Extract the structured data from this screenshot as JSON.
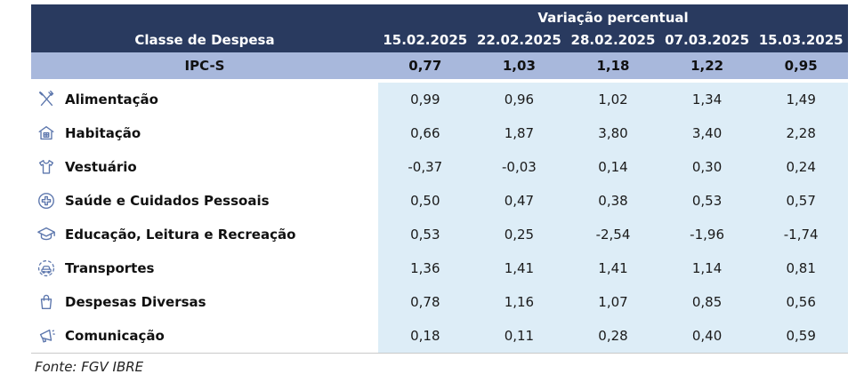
{
  "table": {
    "group_header": "Variação percentual",
    "label_header": "Classe de Despesa",
    "dates": [
      "15.02.2025",
      "22.02.2025",
      "28.02.2025",
      "07.03.2025",
      "15.03.2025"
    ],
    "summary_row": {
      "label": "IPC-S",
      "values": [
        "0,77",
        "1,03",
        "1,18",
        "1,22",
        "0,95"
      ]
    },
    "rows": [
      {
        "icon": "utensils-icon",
        "label": "Alimentação",
        "values": [
          "0,99",
          "0,96",
          "1,02",
          "1,34",
          "1,49"
        ]
      },
      {
        "icon": "house-icon",
        "label": "Habitação",
        "values": [
          "0,66",
          "1,87",
          "3,80",
          "3,40",
          "2,28"
        ]
      },
      {
        "icon": "tshirt-icon",
        "label": "Vestuário",
        "values": [
          "-0,37",
          "-0,03",
          "0,14",
          "0,30",
          "0,24"
        ]
      },
      {
        "icon": "medical-cross-icon",
        "label": "Saúde e Cuidados Pessoais",
        "values": [
          "0,50",
          "0,47",
          "0,38",
          "0,53",
          "0,57"
        ]
      },
      {
        "icon": "graduation-cap-icon",
        "label": "Educação, Leitura e Recreação",
        "values": [
          "0,53",
          "0,25",
          "-2,54",
          "-1,96",
          "-1,74"
        ]
      },
      {
        "icon": "car-icon",
        "label": "Transportes",
        "values": [
          "1,36",
          "1,41",
          "1,41",
          "1,14",
          "0,81"
        ]
      },
      {
        "icon": "shopping-bag-icon",
        "label": "Despesas Diversas",
        "values": [
          "0,78",
          "1,16",
          "1,07",
          "0,85",
          "0,56"
        ]
      },
      {
        "icon": "megaphone-icon",
        "label": "Comunicação",
        "values": [
          "0,18",
          "0,11",
          "0,28",
          "0,40",
          "0,59"
        ]
      }
    ],
    "source": "Fonte: FGV IBRE"
  },
  "colors": {
    "header_bg": "#293a5f",
    "summary_bg": "#a8b8dc",
    "data_bg": "#ddedf7",
    "header_text": "#ffffff",
    "body_text": "#1a1a1a",
    "icon": "#5d77ad",
    "rule": "#c9c9c9"
  },
  "chart_data": {
    "type": "table",
    "title": "Variação percentual",
    "row_header": "Classe de Despesa",
    "columns": [
      "15.02.2025",
      "22.02.2025",
      "28.02.2025",
      "07.03.2025",
      "15.03.2025"
    ],
    "series": [
      {
        "name": "IPC-S",
        "values": [
          0.77,
          1.03,
          1.18,
          1.22,
          0.95
        ]
      },
      {
        "name": "Alimentação",
        "values": [
          0.99,
          0.96,
          1.02,
          1.34,
          1.49
        ]
      },
      {
        "name": "Habitação",
        "values": [
          0.66,
          1.87,
          3.8,
          3.4,
          2.28
        ]
      },
      {
        "name": "Vestuário",
        "values": [
          -0.37,
          -0.03,
          0.14,
          0.3,
          0.24
        ]
      },
      {
        "name": "Saúde e Cuidados Pessoais",
        "values": [
          0.5,
          0.47,
          0.38,
          0.53,
          0.57
        ]
      },
      {
        "name": "Educação, Leitura e Recreação",
        "values": [
          0.53,
          0.25,
          -2.54,
          -1.96,
          -1.74
        ]
      },
      {
        "name": "Transportes",
        "values": [
          1.36,
          1.41,
          1.41,
          1.14,
          0.81
        ]
      },
      {
        "name": "Despesas Diversas",
        "values": [
          0.78,
          1.16,
          1.07,
          0.85,
          0.56
        ]
      },
      {
        "name": "Comunicação",
        "values": [
          0.18,
          0.11,
          0.28,
          0.4,
          0.59
        ]
      }
    ],
    "source": "Fonte: FGV IBRE"
  }
}
